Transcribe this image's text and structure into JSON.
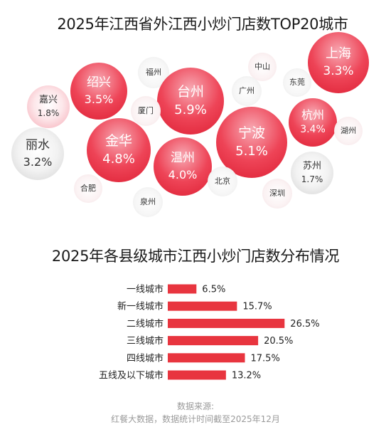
{
  "chart_data": [
    {
      "type": "bubble",
      "title": "2025年江西省外江西小炒门店数TOP20城市",
      "items": [
        {
          "city": "上海",
          "value": "3.3%"
        },
        {
          "city": "绍兴",
          "value": "3.5%"
        },
        {
          "city": "福州",
          "value": ""
        },
        {
          "city": "中山",
          "value": ""
        },
        {
          "city": "广州",
          "value": ""
        },
        {
          "city": "东莞",
          "value": ""
        },
        {
          "city": "台州",
          "value": "5.9%"
        },
        {
          "city": "嘉兴",
          "value": "1.8%"
        },
        {
          "city": "厦门",
          "value": ""
        },
        {
          "city": "杭州",
          "value": "3.4%"
        },
        {
          "city": "湖州",
          "value": ""
        },
        {
          "city": "宁波",
          "value": "5.1%"
        },
        {
          "city": "金华",
          "value": "4.8%"
        },
        {
          "city": "丽水",
          "value": "3.2%"
        },
        {
          "city": "温州",
          "value": "4.0%"
        },
        {
          "city": "苏州",
          "value": "1.7%"
        },
        {
          "city": "北京",
          "value": ""
        },
        {
          "city": "合肥",
          "value": ""
        },
        {
          "city": "深圳",
          "value": ""
        },
        {
          "city": "泉州",
          "value": ""
        }
      ]
    },
    {
      "type": "bar",
      "orientation": "horizontal",
      "title": "2025年各县级城市江西小炒门店数分布情况",
      "categories": [
        "一线城市",
        "新一线城市",
        "二线城市",
        "三线城市",
        "四线城市",
        "五线及以下城市"
      ],
      "values": [
        6.5,
        15.7,
        26.5,
        20.5,
        17.5,
        13.2
      ],
      "labels": [
        "6.5%",
        "15.7%",
        "26.5%",
        "20.5%",
        "17.5%",
        "13.2%"
      ],
      "xlim": [
        0,
        30
      ],
      "color": "#e8353f"
    }
  ],
  "source": {
    "line1": "数据来源:",
    "line2": "红餐大数据，数据统计时间截至2025年12月"
  }
}
